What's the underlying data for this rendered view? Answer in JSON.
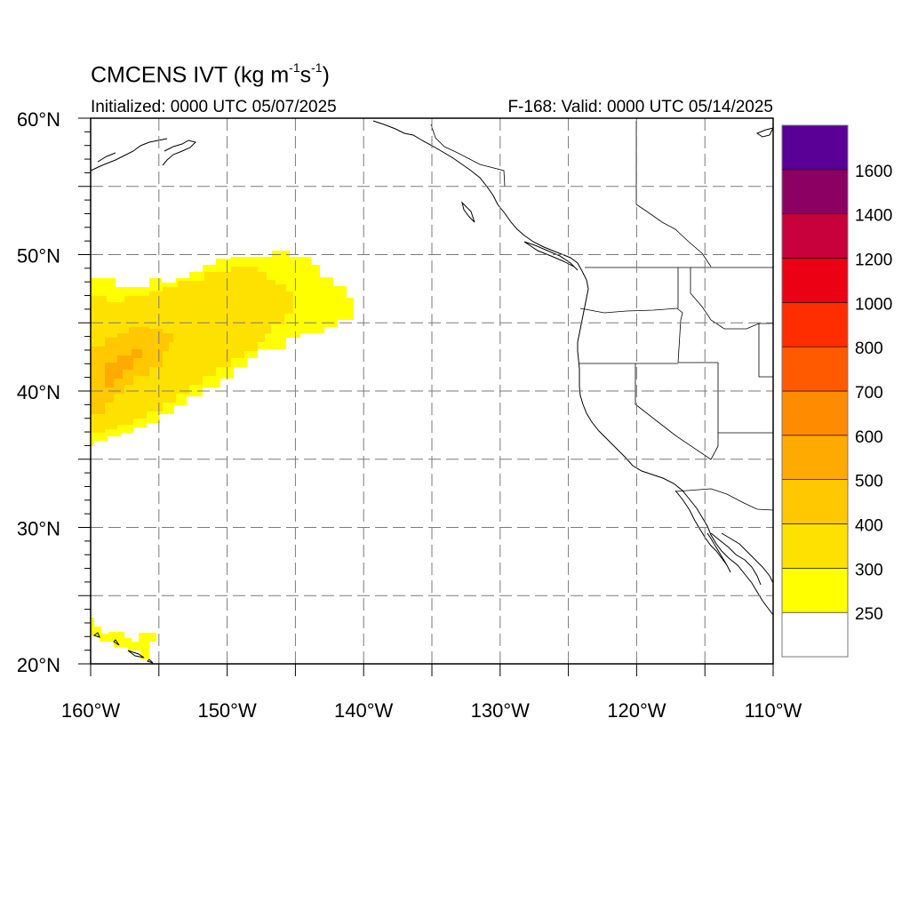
{
  "title": {
    "main": "CMCENS IVT (kg m",
    "sup1": "-1",
    "mid": "s",
    "sup2": "-1",
    "end": ")"
  },
  "init_label": "Initialized: 0000 UTC 05/07/2025",
  "valid_label": "F-168: Valid: 0000 UTC 05/14/2025",
  "map": {
    "lon_range": [
      -160,
      -110
    ],
    "lat_range": [
      20,
      60
    ],
    "lat_labels": [
      {
        "value": 60,
        "text": "60°N"
      },
      {
        "value": 50,
        "text": "50°N"
      },
      {
        "value": 40,
        "text": "40°N"
      },
      {
        "value": 30,
        "text": "30°N"
      },
      {
        "value": 20,
        "text": "20°N"
      }
    ],
    "lon_labels": [
      {
        "value": -160,
        "text": "160°W"
      },
      {
        "value": -150,
        "text": "150°W"
      },
      {
        "value": -140,
        "text": "140°W"
      },
      {
        "value": -130,
        "text": "130°W"
      },
      {
        "value": -120,
        "text": "120°W"
      },
      {
        "value": -110,
        "text": "110°W"
      }
    ],
    "ivt_colors": {
      "250": "#ffff00",
      "300": "#ffe100",
      "400": "#ffc800",
      "500": "#ffaa00"
    }
  },
  "colorbar": {
    "colors": [
      "#ffffff",
      "#ffff00",
      "#ffe100",
      "#ffc800",
      "#ffaa00",
      "#ff8c00",
      "#ff5a00",
      "#ff2d00",
      "#eb0014",
      "#c8003c",
      "#8c0064",
      "#5a0096"
    ],
    "labels": [
      "250",
      "300",
      "400",
      "500",
      "600",
      "700",
      "800",
      "1000",
      "1200",
      "1400",
      "1600"
    ]
  }
}
